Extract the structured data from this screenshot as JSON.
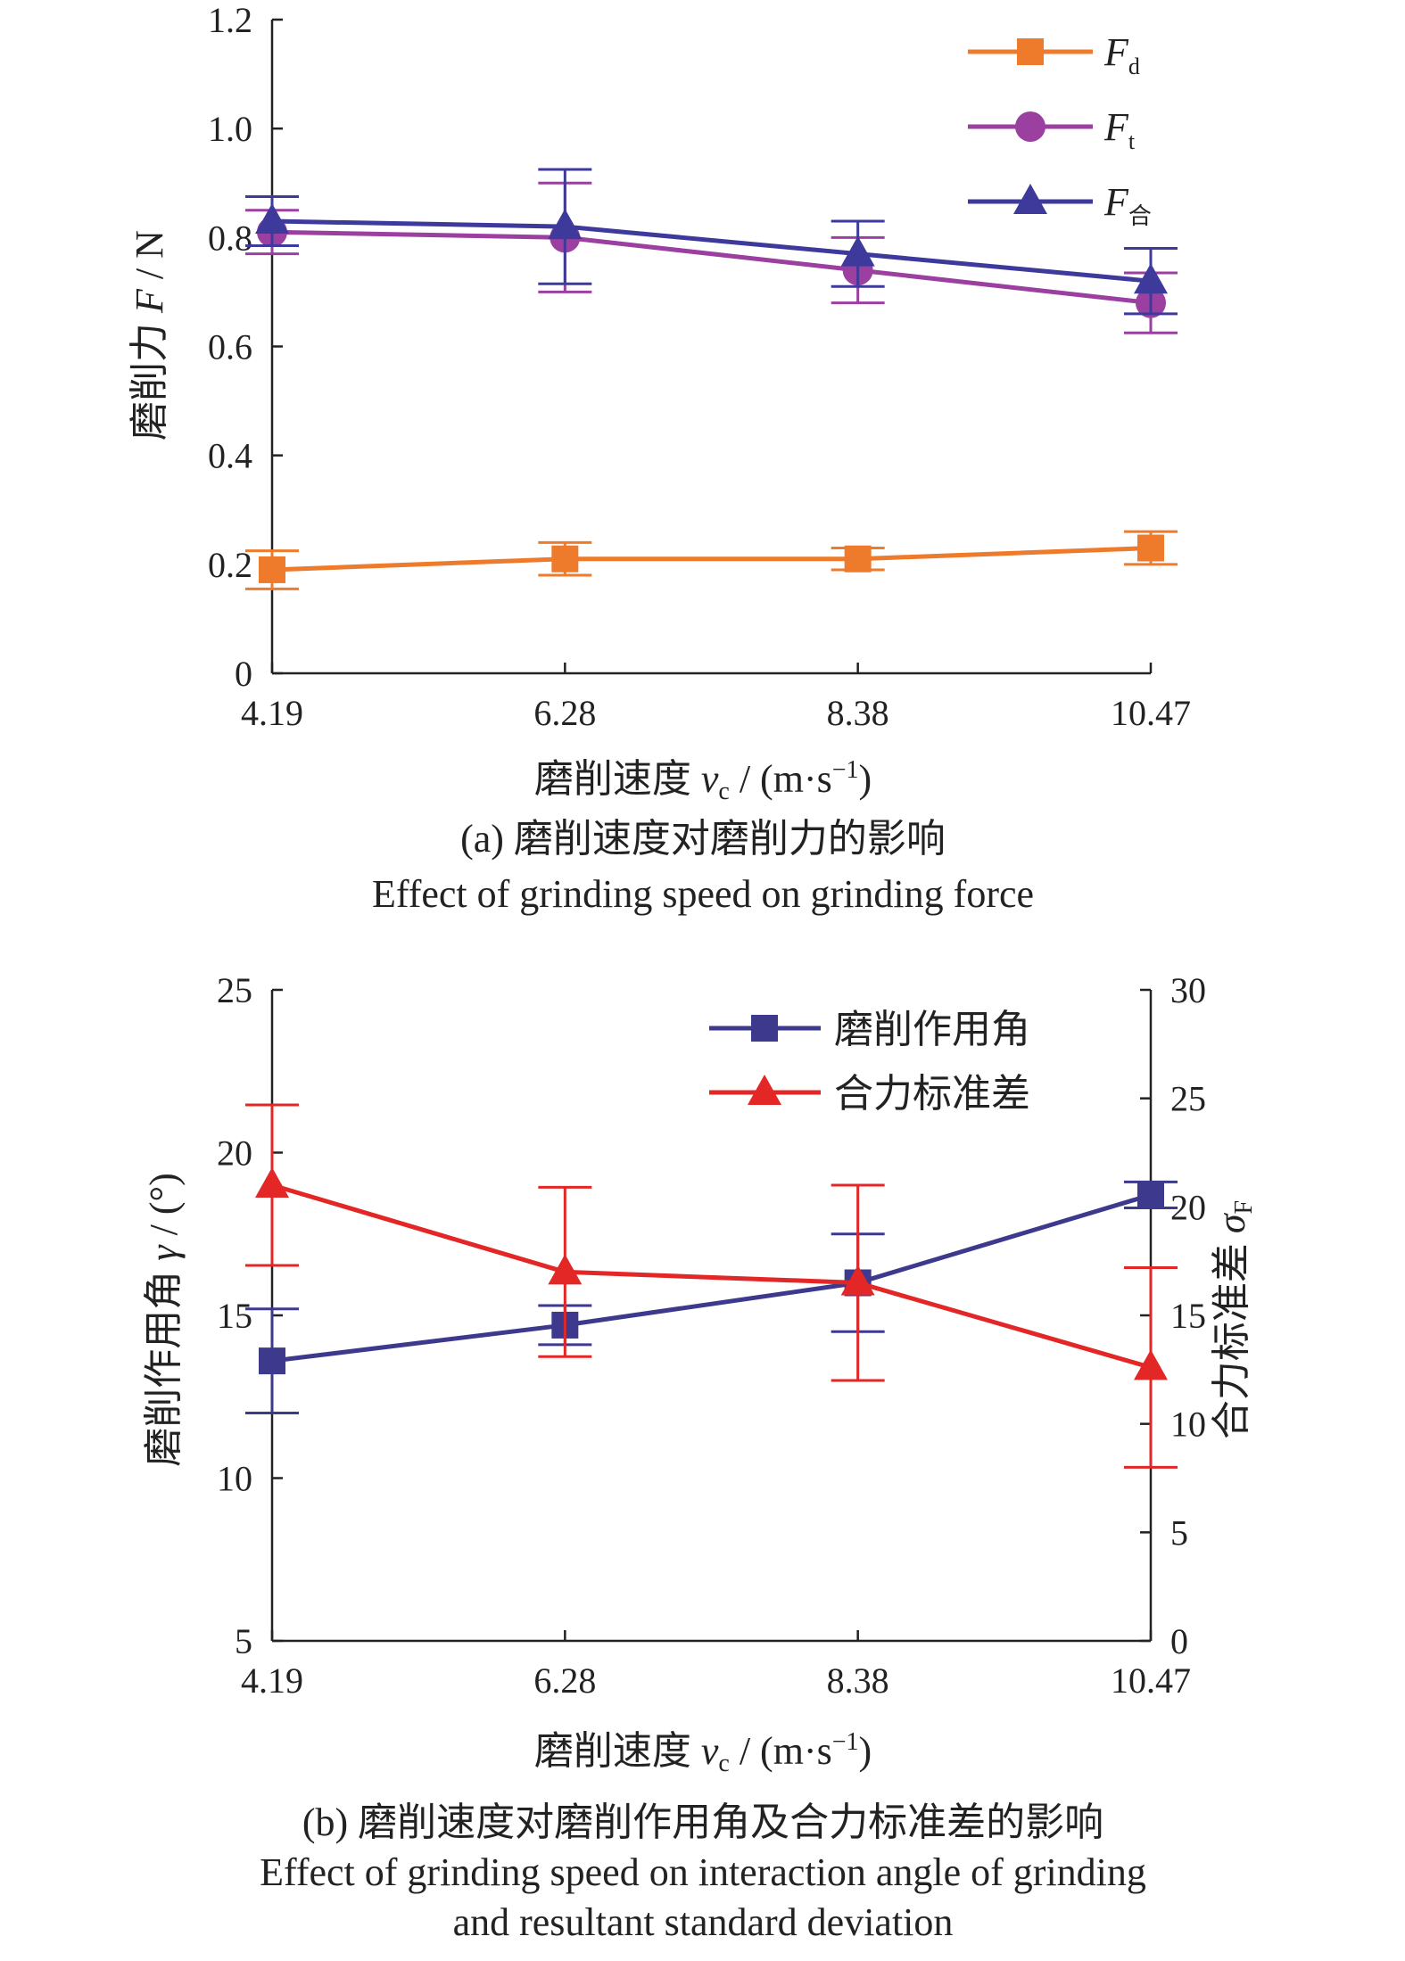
{
  "figure": {
    "caption_a_cn": "(a) 磨削速度对磨削力的影响",
    "caption_a_en": "Effect of grinding speed on grinding force",
    "caption_b_cn": "(b) 磨削速度对磨削作用角及合力标准差的影响",
    "caption_b_en_line1": "Effect of grinding speed on interaction angle of grinding",
    "caption_b_en_line2": "and resultant standard deviation"
  },
  "chart_data": [
    {
      "type": "line",
      "title": "",
      "categories": [
        "4.19",
        "6.28",
        "8.38",
        "10.47"
      ],
      "xlabel_main": "磨削速度 ",
      "xlabel_var": "v",
      "xlabel_sub": "c",
      "xlabel_unit": " / (m·s",
      "xlabel_exp": "−1",
      "xlabel_close": ")",
      "ylabel_main": "磨削力 ",
      "ylabel_var": "F",
      "ylabel_unit": " / N",
      "ylim": [
        0,
        1.2
      ],
      "yticks": [
        "0",
        "0.2",
        "0.4",
        "0.6",
        "0.8",
        "1.0",
        "1.2"
      ],
      "legend_position": "top-right",
      "series": [
        {
          "name": "F",
          "name_sub": "d",
          "color": "#ee7a2c",
          "marker": "square",
          "values": [
            0.19,
            0.21,
            0.21,
            0.23
          ],
          "err": [
            0.035,
            0.03,
            0.02,
            0.03
          ]
        },
        {
          "name": "F",
          "name_sub": "t",
          "color": "#9b3fa0",
          "marker": "circle",
          "values": [
            0.81,
            0.8,
            0.74,
            0.68
          ],
          "err": [
            0.04,
            0.1,
            0.06,
            0.055
          ]
        },
        {
          "name": "F",
          "name_sub": "合",
          "color": "#3d3a9c",
          "marker": "triangle",
          "values": [
            0.83,
            0.82,
            0.77,
            0.72
          ],
          "err": [
            0.045,
            0.105,
            0.06,
            0.06
          ]
        }
      ]
    },
    {
      "type": "line",
      "title": "",
      "categories": [
        "4.19",
        "6.28",
        "8.38",
        "10.47"
      ],
      "xlabel_main": "磨削速度 ",
      "xlabel_var": "v",
      "xlabel_sub": "c",
      "xlabel_unit": " / (m·s",
      "xlabel_exp": "−1",
      "xlabel_close": ")",
      "ylabel_left_main": "磨削作用角 ",
      "ylabel_left_var": "γ",
      "ylabel_left_unit": " / (°)",
      "ylabel_right_main": "合力标准差 ",
      "ylabel_right_var": "σ",
      "ylabel_right_sub": "F",
      "ylim_left": [
        5,
        25
      ],
      "yticks_left": [
        "5",
        "10",
        "15",
        "20",
        "25"
      ],
      "ylim_right": [
        0,
        30
      ],
      "yticks_right": [
        "0",
        "5",
        "10",
        "15",
        "20",
        "25",
        "30"
      ],
      "legend_position": "top-right",
      "series": [
        {
          "name": "磨削作用角",
          "axis": "left",
          "color": "#3d3a8e",
          "marker": "square",
          "values": [
            13.6,
            14.7,
            16.0,
            18.7
          ],
          "err": [
            1.6,
            0.6,
            1.5,
            0.4
          ]
        },
        {
          "name": "合力标准差",
          "axis": "right",
          "color": "#e32626",
          "marker": "triangle",
          "values": [
            21.0,
            17.0,
            16.5,
            12.6
          ],
          "err": [
            3.7,
            3.9,
            4.5,
            4.6
          ]
        }
      ]
    }
  ]
}
